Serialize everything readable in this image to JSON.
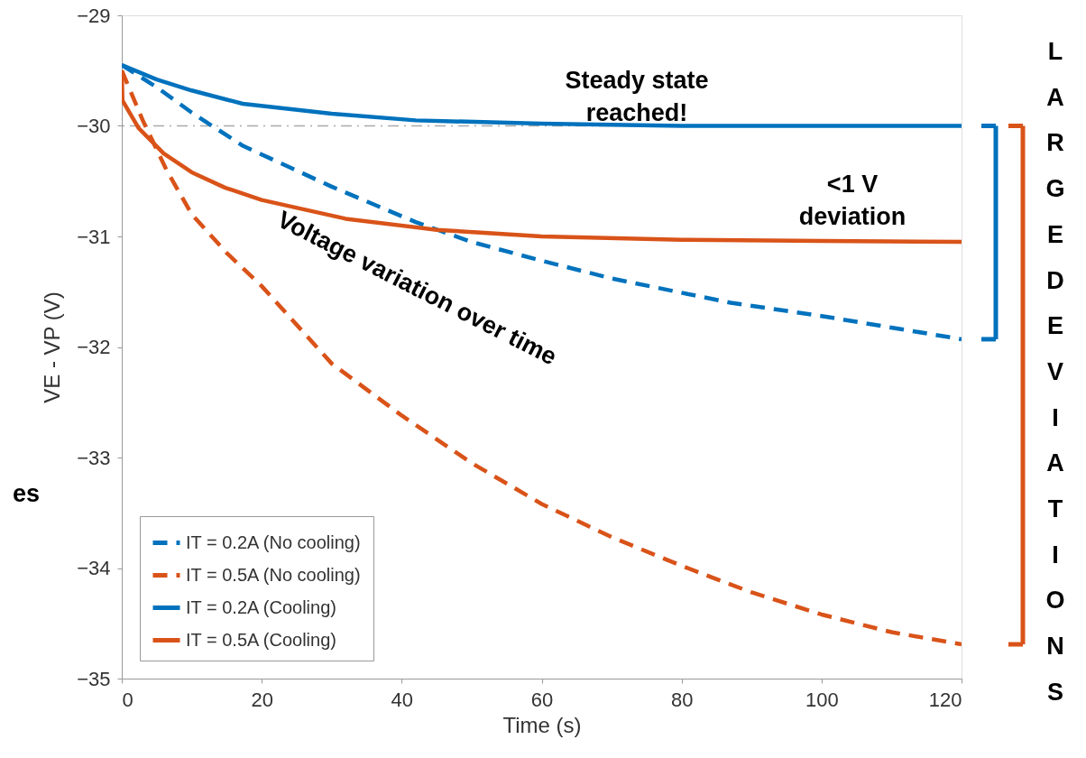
{
  "chart_data": {
    "type": "line",
    "xlabel": "Time (s)",
    "ylabel": "VE - VP (V)",
    "xlim": [
      0,
      120
    ],
    "ylim": [
      -35,
      -29
    ],
    "xticks": [
      0,
      20,
      40,
      60,
      80,
      100,
      120
    ],
    "yticks": [
      -35,
      -34,
      -33,
      -32,
      -31,
      -30,
      -29
    ],
    "legend": "bottom left",
    "series": [
      {
        "name": "IT = 0.2A (No cooling)",
        "color": "#0072bd",
        "line_style": "dashed",
        "x": [
          0,
          5,
          10,
          17.3,
          30,
          42,
          50,
          60,
          70,
          87,
          100,
          120
        ],
        "values": [
          -29.45,
          -29.65,
          -29.88,
          -30.18,
          -30.55,
          -30.87,
          -31.05,
          -31.22,
          -31.38,
          -31.6,
          -31.72,
          -31.93
        ]
      },
      {
        "name": "IT = 0.5A (No cooling)",
        "color": "#d95319",
        "line_style": "dashed",
        "x": [
          0,
          3,
          6.4,
          10,
          15,
          20,
          30,
          40,
          50,
          60,
          70,
          80,
          90,
          100,
          110,
          120
        ],
        "values": [
          -29.5,
          -29.95,
          -30.4,
          -30.8,
          -31.15,
          -31.45,
          -32.15,
          -32.62,
          -33.05,
          -33.42,
          -33.72,
          -33.98,
          -34.22,
          -34.42,
          -34.58,
          -34.69
        ]
      },
      {
        "name": "IT = 0.2A (Cooling)",
        "color": "#0072bd",
        "line_style": "solid",
        "x": [
          0,
          5,
          10,
          17.3,
          30,
          42,
          60,
          80,
          100,
          120
        ],
        "values": [
          -29.45,
          -29.58,
          -29.68,
          -29.8,
          -29.89,
          -29.95,
          -29.98,
          -30.0,
          -30.0,
          -30.0
        ]
      },
      {
        "name": "IT = 0.5A (Cooling)",
        "color": "#d95319",
        "line_style": "solid",
        "x": [
          0,
          0.1,
          2.4,
          6,
          10,
          14.8,
          20,
          32,
          45,
          60,
          80,
          100,
          120
        ],
        "values": [
          -29.5,
          -29.77,
          -30.02,
          -30.25,
          -30.42,
          -30.56,
          -30.67,
          -30.84,
          -30.94,
          -31.0,
          -31.03,
          -31.04,
          -31.05
        ]
      }
    ],
    "ref_lines": [
      {
        "axis": "y",
        "value": -30,
        "color": "#aaaaaa",
        "line_style": "dashed"
      }
    ],
    "annotations": [
      "Steady state\nreached!",
      "<1 V\ndeviation",
      "Voltage variation over time",
      "LARGE DEVIATIONS",
      "es"
    ]
  }
}
